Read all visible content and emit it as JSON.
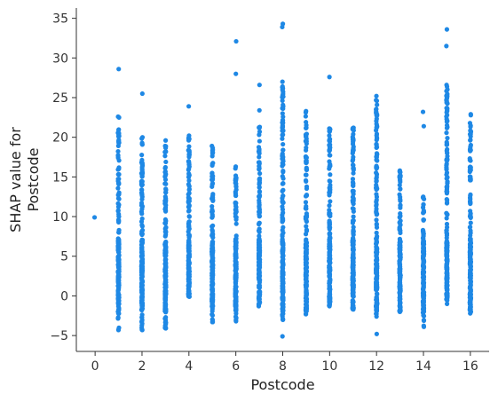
{
  "chart_data": {
    "type": "scatter",
    "title": "",
    "xlabel": "Postcode",
    "ylabel_lines": [
      "SHAP value for",
      "Postcode"
    ],
    "xlim": [
      -0.8,
      16.8
    ],
    "ylim": [
      -7,
      36.3
    ],
    "xticks": [
      0,
      2,
      4,
      6,
      8,
      10,
      12,
      14,
      16
    ],
    "yticks": [
      -5,
      0,
      5,
      10,
      15,
      20,
      25,
      30,
      35
    ],
    "grid": false,
    "legend": "none",
    "point_color": "#1E88E5",
    "series": [
      {
        "columns": [
          {
            "x": 0,
            "min": 9.9,
            "max": 9.9,
            "extra": []
          },
          {
            "x": 1,
            "min": -4.3,
            "max": 22.6,
            "extra": [
              28.6
            ]
          },
          {
            "x": 2,
            "min": -4.3,
            "max": 20.0,
            "extra": [
              25.5
            ]
          },
          {
            "x": 3,
            "min": -4.1,
            "max": 19.6,
            "extra": []
          },
          {
            "x": 4,
            "min": -0.1,
            "max": 20.2,
            "extra": [
              23.9
            ]
          },
          {
            "x": 5,
            "min": -3.3,
            "max": 18.9,
            "extra": []
          },
          {
            "x": 6,
            "min": -3.2,
            "max": 16.3,
            "extra": [
              28.0,
              32.1
            ]
          },
          {
            "x": 7,
            "min": -1.3,
            "max": 21.3,
            "extra": [
              23.4,
              26.6
            ]
          },
          {
            "x": 8,
            "min": -3.0,
            "max": 27.0,
            "extra": [
              -5.1,
              33.9,
              34.3
            ]
          },
          {
            "x": 9,
            "min": -2.3,
            "max": 23.3,
            "extra": []
          },
          {
            "x": 10,
            "min": -1.3,
            "max": 21.1,
            "extra": [
              27.6
            ]
          },
          {
            "x": 11,
            "min": -1.7,
            "max": 21.2,
            "extra": []
          },
          {
            "x": 12,
            "min": -2.6,
            "max": 25.2,
            "extra": [
              -4.8
            ]
          },
          {
            "x": 13,
            "min": -2.0,
            "max": 15.8,
            "extra": []
          },
          {
            "x": 14,
            "min": -3.9,
            "max": 12.5,
            "extra": [
              21.4,
              23.2
            ]
          },
          {
            "x": 15,
            "min": -1.0,
            "max": 26.6,
            "extra": [
              31.5,
              33.6
            ]
          },
          {
            "x": 16,
            "min": -2.2,
            "max": 22.9,
            "extra": []
          }
        ]
      }
    ]
  }
}
